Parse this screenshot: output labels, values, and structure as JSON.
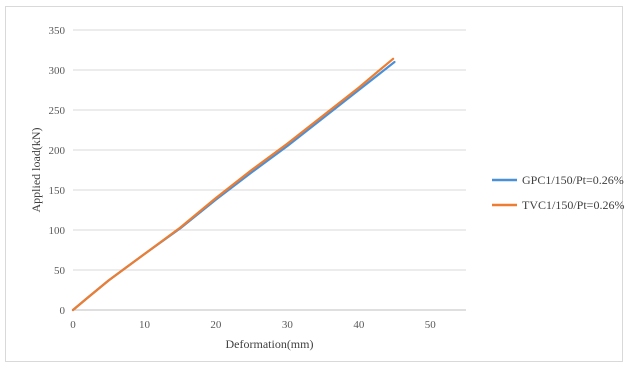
{
  "chart_data": {
    "type": "line",
    "title": "",
    "xlabel": "Deformation(mm)",
    "ylabel": "Applied load(kN)",
    "xlim": [
      0,
      55
    ],
    "ylim": [
      0,
      350
    ],
    "x_ticks": [
      0,
      10,
      20,
      30,
      40,
      50
    ],
    "y_ticks": [
      0,
      50,
      100,
      150,
      200,
      250,
      300,
      350
    ],
    "grid": "horizontal",
    "legend_position": "right",
    "series": [
      {
        "name": "GPC1/150/Pt=0.26%",
        "color": "#4a90d9",
        "x": [
          0,
          2,
          5,
          10,
          15,
          20,
          25,
          30,
          35,
          40,
          45
        ],
        "y": [
          0,
          15,
          37,
          70,
          102,
          138,
          172,
          205,
          240,
          275,
          310
        ]
      },
      {
        "name": "TVC1/150/Pt=0.26%",
        "color": "#ed7d31",
        "x": [
          0,
          2,
          5,
          10,
          15,
          20,
          25,
          30,
          35,
          40,
          44.8
        ],
        "y": [
          0,
          15,
          37,
          70,
          103,
          140,
          175,
          208,
          243,
          278,
          314
        ]
      }
    ]
  }
}
